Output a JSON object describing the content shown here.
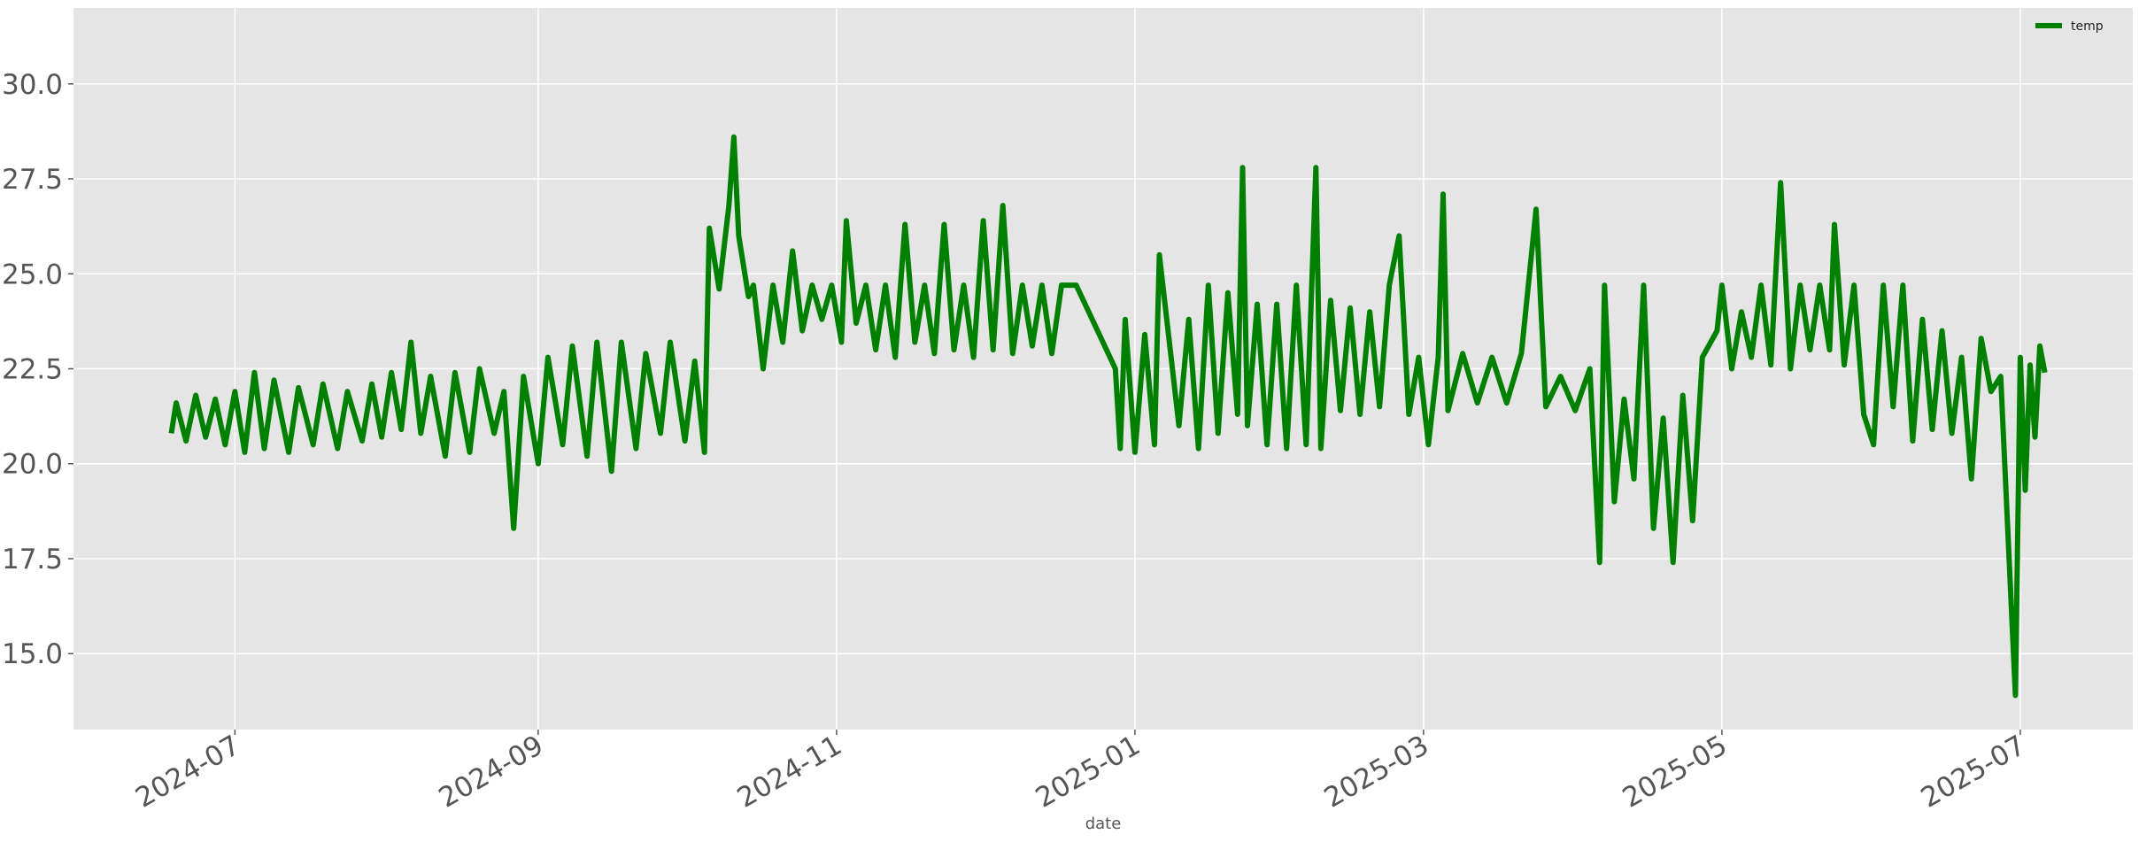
{
  "chart_data": {
    "type": "line",
    "x_label": "date",
    "x": [
      "2024-06-18",
      "2024-06-19",
      "2024-06-21",
      "2024-06-23",
      "2024-06-25",
      "2024-06-27",
      "2024-06-29",
      "2024-07-01",
      "2024-07-03",
      "2024-07-05",
      "2024-07-07",
      "2024-07-09",
      "2024-07-12",
      "2024-07-14",
      "2024-07-17",
      "2024-07-19",
      "2024-07-22",
      "2024-07-24",
      "2024-07-27",
      "2024-07-29",
      "2024-07-31",
      "2024-08-02",
      "2024-08-04",
      "2024-08-06",
      "2024-08-08",
      "2024-08-10",
      "2024-08-13",
      "2024-08-15",
      "2024-08-18",
      "2024-08-20",
      "2024-08-23",
      "2024-08-25",
      "2024-08-27",
      "2024-08-29",
      "2024-09-01",
      "2024-09-03",
      "2024-09-06",
      "2024-09-08",
      "2024-09-11",
      "2024-09-13",
      "2024-09-16",
      "2024-09-18",
      "2024-09-21",
      "2024-09-23",
      "2024-09-26",
      "2024-09-28",
      "2024-10-01",
      "2024-10-03",
      "2024-10-05",
      "2024-10-06",
      "2024-10-08",
      "2024-10-10",
      "2024-10-11",
      "2024-10-12",
      "2024-10-14",
      "2024-10-15",
      "2024-10-17",
      "2024-10-19",
      "2024-10-21",
      "2024-10-23",
      "2024-10-25",
      "2024-10-27",
      "2024-10-29",
      "2024-10-31",
      "2024-11-02",
      "2024-11-03",
      "2024-11-05",
      "2024-11-07",
      "2024-11-09",
      "2024-11-11",
      "2024-11-13",
      "2024-11-15",
      "2024-11-17",
      "2024-11-19",
      "2024-11-21",
      "2024-11-23",
      "2024-11-25",
      "2024-11-27",
      "2024-11-29",
      "2024-12-01",
      "2024-12-03",
      "2024-12-05",
      "2024-12-07",
      "2024-12-09",
      "2024-12-11",
      "2024-12-13",
      "2024-12-15",
      "2024-12-17",
      "2024-12-20",
      "2024-12-28",
      "2024-12-29",
      "2024-12-30",
      "2025-01-01",
      "2025-01-03",
      "2025-01-05",
      "2025-01-06",
      "2025-01-10",
      "2025-01-12",
      "2025-01-14",
      "2025-01-16",
      "2025-01-18",
      "2025-01-20",
      "2025-01-22",
      "2025-01-23",
      "2025-01-24",
      "2025-01-26",
      "2025-01-28",
      "2025-01-30",
      "2025-02-01",
      "2025-02-03",
      "2025-02-05",
      "2025-02-07",
      "2025-02-08",
      "2025-02-10",
      "2025-02-12",
      "2025-02-14",
      "2025-02-16",
      "2025-02-18",
      "2025-02-20",
      "2025-02-22",
      "2025-02-24",
      "2025-02-26",
      "2025-02-28",
      "2025-03-02",
      "2025-03-04",
      "2025-03-05",
      "2025-03-06",
      "2025-03-09",
      "2025-03-12",
      "2025-03-15",
      "2025-03-18",
      "2025-03-21",
      "2025-03-24",
      "2025-03-26",
      "2025-03-29",
      "2025-04-01",
      "2025-04-04",
      "2025-04-06",
      "2025-04-07",
      "2025-04-09",
      "2025-04-11",
      "2025-04-13",
      "2025-04-15",
      "2025-04-17",
      "2025-04-19",
      "2025-04-21",
      "2025-04-23",
      "2025-04-25",
      "2025-04-27",
      "2025-04-30",
      "2025-05-01",
      "2025-05-03",
      "2025-05-05",
      "2025-05-07",
      "2025-05-09",
      "2025-05-11",
      "2025-05-13",
      "2025-05-15",
      "2025-05-17",
      "2025-05-19",
      "2025-05-21",
      "2025-05-23",
      "2025-05-24",
      "2025-05-26",
      "2025-05-28",
      "2025-05-30",
      "2025-06-01",
      "2025-06-03",
      "2025-06-05",
      "2025-06-07",
      "2025-06-09",
      "2025-06-11",
      "2025-06-13",
      "2025-06-15",
      "2025-06-17",
      "2025-06-19",
      "2025-06-21",
      "2025-06-23",
      "2025-06-25",
      "2025-06-27",
      "2025-06-30",
      "2025-07-01",
      "2025-07-02",
      "2025-07-03",
      "2025-07-04",
      "2025-07-05",
      "2025-07-06"
    ],
    "series": [
      {
        "name": "temp",
        "color": "#008000",
        "values": [
          20.8,
          21.6,
          20.6,
          21.8,
          20.7,
          21.7,
          20.5,
          21.9,
          20.3,
          22.4,
          20.4,
          22.2,
          20.3,
          22.0,
          20.5,
          22.1,
          20.4,
          21.9,
          20.6,
          22.1,
          20.7,
          22.4,
          20.9,
          23.2,
          20.8,
          22.3,
          20.2,
          22.4,
          20.3,
          22.5,
          20.8,
          21.9,
          18.3,
          22.3,
          20.0,
          22.8,
          20.5,
          23.1,
          20.2,
          23.2,
          19.8,
          23.2,
          20.4,
          22.9,
          20.8,
          23.2,
          20.6,
          22.7,
          20.3,
          26.2,
          24.6,
          26.8,
          28.6,
          26.0,
          24.4,
          24.7,
          22.5,
          24.7,
          23.2,
          25.6,
          23.5,
          24.7,
          23.8,
          24.7,
          23.2,
          26.4,
          23.7,
          24.7,
          23.0,
          24.7,
          22.8,
          26.3,
          23.2,
          24.7,
          22.9,
          26.3,
          23.0,
          24.7,
          22.8,
          26.4,
          23.0,
          26.8,
          22.9,
          24.7,
          23.1,
          24.7,
          22.9,
          24.7,
          24.7,
          22.5,
          20.4,
          23.8,
          20.3,
          23.4,
          20.5,
          25.5,
          21.0,
          23.8,
          20.4,
          24.7,
          20.8,
          24.5,
          21.3,
          27.8,
          21.0,
          24.2,
          20.5,
          24.2,
          20.4,
          24.7,
          20.5,
          27.8,
          20.4,
          24.3,
          21.4,
          24.1,
          21.3,
          24.0,
          21.5,
          24.7,
          26.0,
          21.3,
          22.8,
          20.5,
          22.8,
          27.1,
          21.4,
          22.9,
          21.6,
          22.8,
          21.6,
          22.9,
          26.7,
          21.5,
          22.3,
          21.4,
          22.5,
          17.4,
          24.7,
          19.0,
          21.7,
          19.6,
          24.7,
          18.3,
          21.2,
          17.4,
          21.8,
          18.5,
          22.8,
          23.5,
          24.7,
          22.5,
          24.0,
          22.8,
          24.7,
          22.6,
          27.4,
          22.5,
          24.7,
          23.0,
          24.7,
          23.0,
          26.3,
          22.6,
          24.7,
          21.3,
          20.5,
          24.7,
          21.5,
          24.7,
          20.6,
          23.8,
          20.9,
          23.5,
          20.8,
          22.8,
          19.6,
          23.3,
          21.9,
          22.3,
          13.9,
          22.8,
          19.3,
          22.6,
          20.7,
          23.1,
          22.4
        ]
      }
    ],
    "xlim": [
      "2024-05-29",
      "2025-07-24"
    ],
    "xticks": [
      {
        "value": "2024-07-01",
        "label": "2024-07"
      },
      {
        "value": "2024-09-01",
        "label": "2024-09"
      },
      {
        "value": "2024-11-01",
        "label": "2024-11"
      },
      {
        "value": "2025-01-01",
        "label": "2025-01"
      },
      {
        "value": "2025-03-01",
        "label": "2025-03"
      },
      {
        "value": "2025-05-01",
        "label": "2025-05"
      },
      {
        "value": "2025-07-01",
        "label": "2025-07"
      }
    ],
    "ylim": [
      13.0,
      32.0
    ],
    "yticks": [
      {
        "value": 15,
        "label": "15.0"
      },
      17.5,
      {
        "value": 20,
        "label": "20.0"
      },
      22.5,
      {
        "value": 25,
        "label": "25.0"
      },
      27.5,
      {
        "value": 30,
        "label": "30.0"
      }
    ],
    "grid": true,
    "legend": "upper right"
  }
}
